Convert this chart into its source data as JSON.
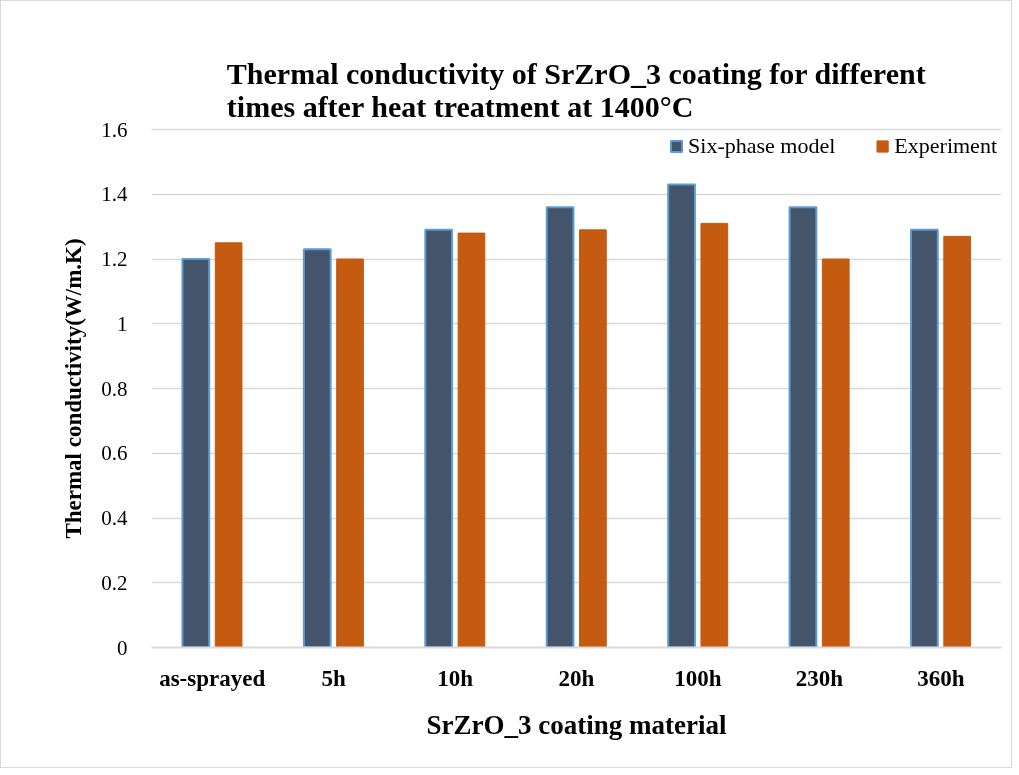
{
  "chart_data": {
    "type": "bar",
    "title": "Thermal conductivity of SrZrO_3 coating for different times after heat treatment at 1400°C",
    "xlabel": "SrZrO_3 coating material",
    "ylabel": "Thermal conductivity(W/m.K)",
    "categories": [
      "as-sprayed",
      "5h",
      "10h",
      "20h",
      "100h",
      "230h",
      "360h"
    ],
    "series": [
      {
        "name": "Six-phase model",
        "color": "#44546a",
        "values": [
          1.2,
          1.23,
          1.29,
          1.36,
          1.43,
          1.36,
          1.29
        ]
      },
      {
        "name": "Experiment",
        "color": "#c55a11",
        "values": [
          1.25,
          1.2,
          1.28,
          1.29,
          1.31,
          1.2,
          1.27
        ]
      }
    ],
    "ylim": [
      0,
      1.6
    ],
    "yticks": [
      0,
      0.2,
      0.4,
      0.6,
      0.8,
      1,
      1.2,
      1.4,
      1.6
    ],
    "grid": "y",
    "legend": "top right"
  }
}
